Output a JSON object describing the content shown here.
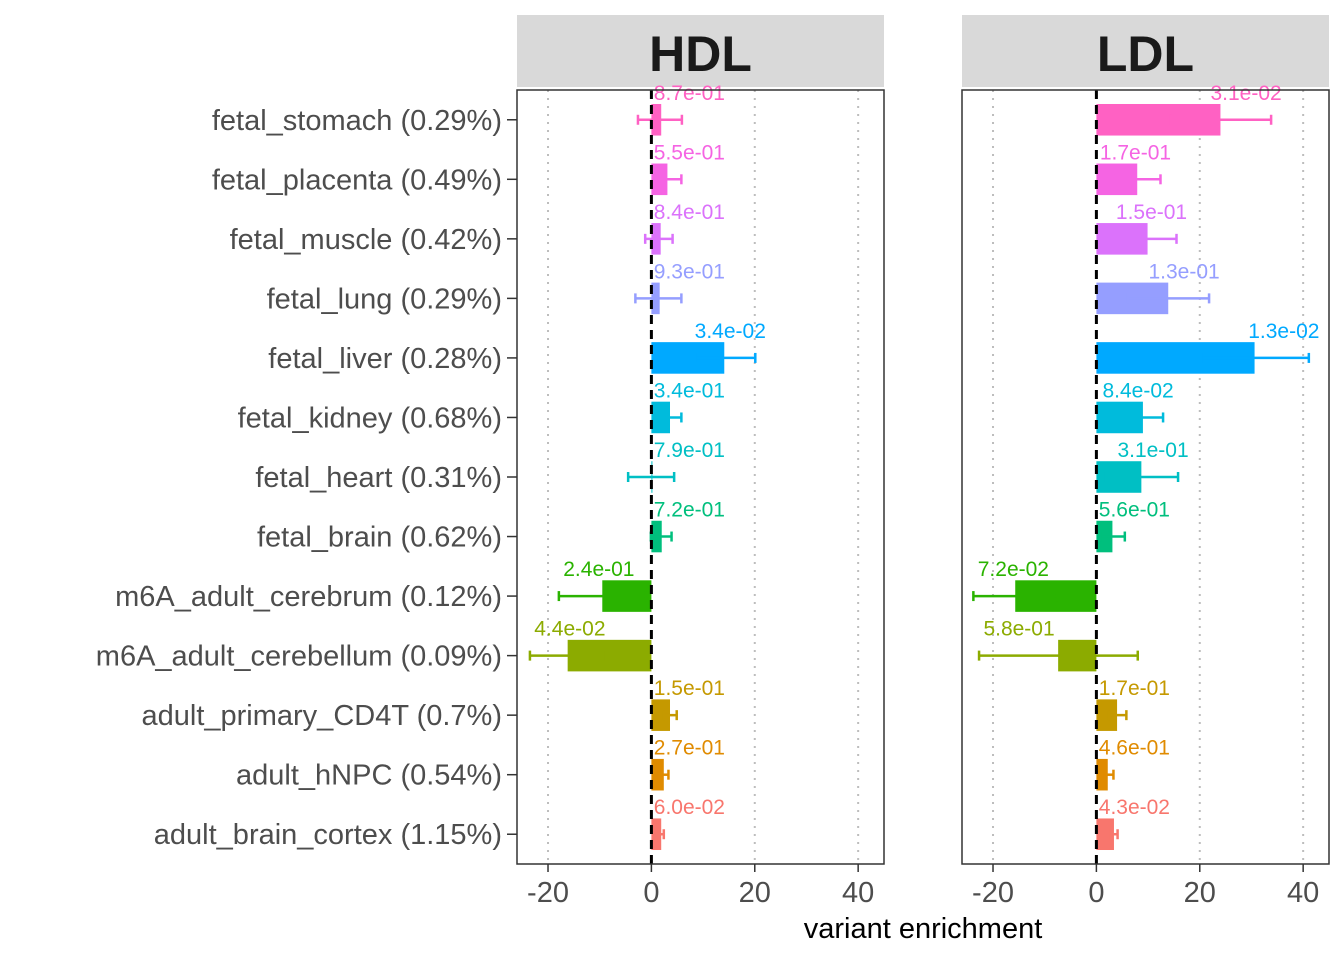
{
  "chart_data": {
    "type": "bar",
    "orientation": "horizontal",
    "xlabel": "variant enrichment",
    "xlim": [
      -26,
      45
    ],
    "xticks": [
      -20,
      0,
      20,
      40
    ],
    "reference_line": 0,
    "grid": "dotted vertical",
    "categories": [
      "fetal_stomach (0.29%)",
      "fetal_placenta (0.49%)",
      "fetal_muscle (0.42%)",
      "fetal_lung (0.29%)",
      "fetal_liver (0.28%)",
      "fetal_kidney (0.68%)",
      "fetal_heart (0.31%)",
      "fetal_brain (0.62%)",
      "m6A_adult_cerebrum (0.12%)",
      "m6A_adult_cerebellum (0.09%)",
      "adult_primary_CD4T (0.7%)",
      "adult_hNPC (0.54%)",
      "adult_brain_cortex (1.15%)"
    ],
    "colors": [
      "#FF61C3",
      "#F564E3",
      "#DB72FB",
      "#959EFF",
      "#00A9FF",
      "#00BBDC",
      "#00BFC4",
      "#00BF7D",
      "#2AB300",
      "#8CAB00",
      "#C59900",
      "#E08B00",
      "#F8766D"
    ],
    "panels": [
      {
        "name": "HDL",
        "values": [
          1.9,
          3.1,
          1.8,
          1.6,
          14.1,
          3.6,
          0.2,
          2.0,
          -9.5,
          -16.2,
          3.6,
          2.4,
          1.9
        ],
        "lower": [
          -2.6,
          0.3,
          -1.2,
          -3.1,
          8.5,
          1.5,
          -4.5,
          -0.1,
          -17.9,
          -23.5,
          2.4,
          1.5,
          1.5
        ],
        "upper": [
          5.9,
          5.8,
          4.1,
          5.8,
          20.1,
          5.8,
          4.4,
          3.9,
          -1.1,
          -8.9,
          4.9,
          3.3,
          2.4
        ],
        "labels": [
          "8.7e-01",
          "5.5e-01",
          "8.4e-01",
          "9.3e-01",
          "3.4e-02",
          "3.4e-01",
          "7.9e-01",
          "7.2e-01",
          "2.4e-01",
          "4.4e-02",
          "1.5e-01",
          "2.7e-01",
          "6.0e-02"
        ]
      },
      {
        "name": "LDL",
        "values": [
          24.0,
          7.9,
          9.9,
          13.9,
          30.6,
          9.0,
          8.7,
          3.1,
          -15.7,
          -7.4,
          4.0,
          2.2,
          3.4
        ],
        "lower": [
          14.3,
          3.3,
          4.4,
          6.1,
          20.3,
          5.1,
          1.3,
          0.8,
          -23.8,
          -22.7,
          2.4,
          1.1,
          2.8
        ],
        "upper": [
          33.8,
          12.4,
          15.5,
          21.8,
          41.1,
          12.9,
          15.8,
          5.5,
          -7.6,
          8.0,
          5.8,
          3.3,
          4.1
        ],
        "labels": [
          "3.1e-02",
          "1.7e-01",
          "1.5e-01",
          "1.3e-01",
          "1.3e-02",
          "8.4e-02",
          "3.1e-01",
          "5.6e-01",
          "7.2e-02",
          "5.8e-01",
          "1.7e-01",
          "4.6e-01",
          "4.3e-02"
        ]
      }
    ]
  }
}
